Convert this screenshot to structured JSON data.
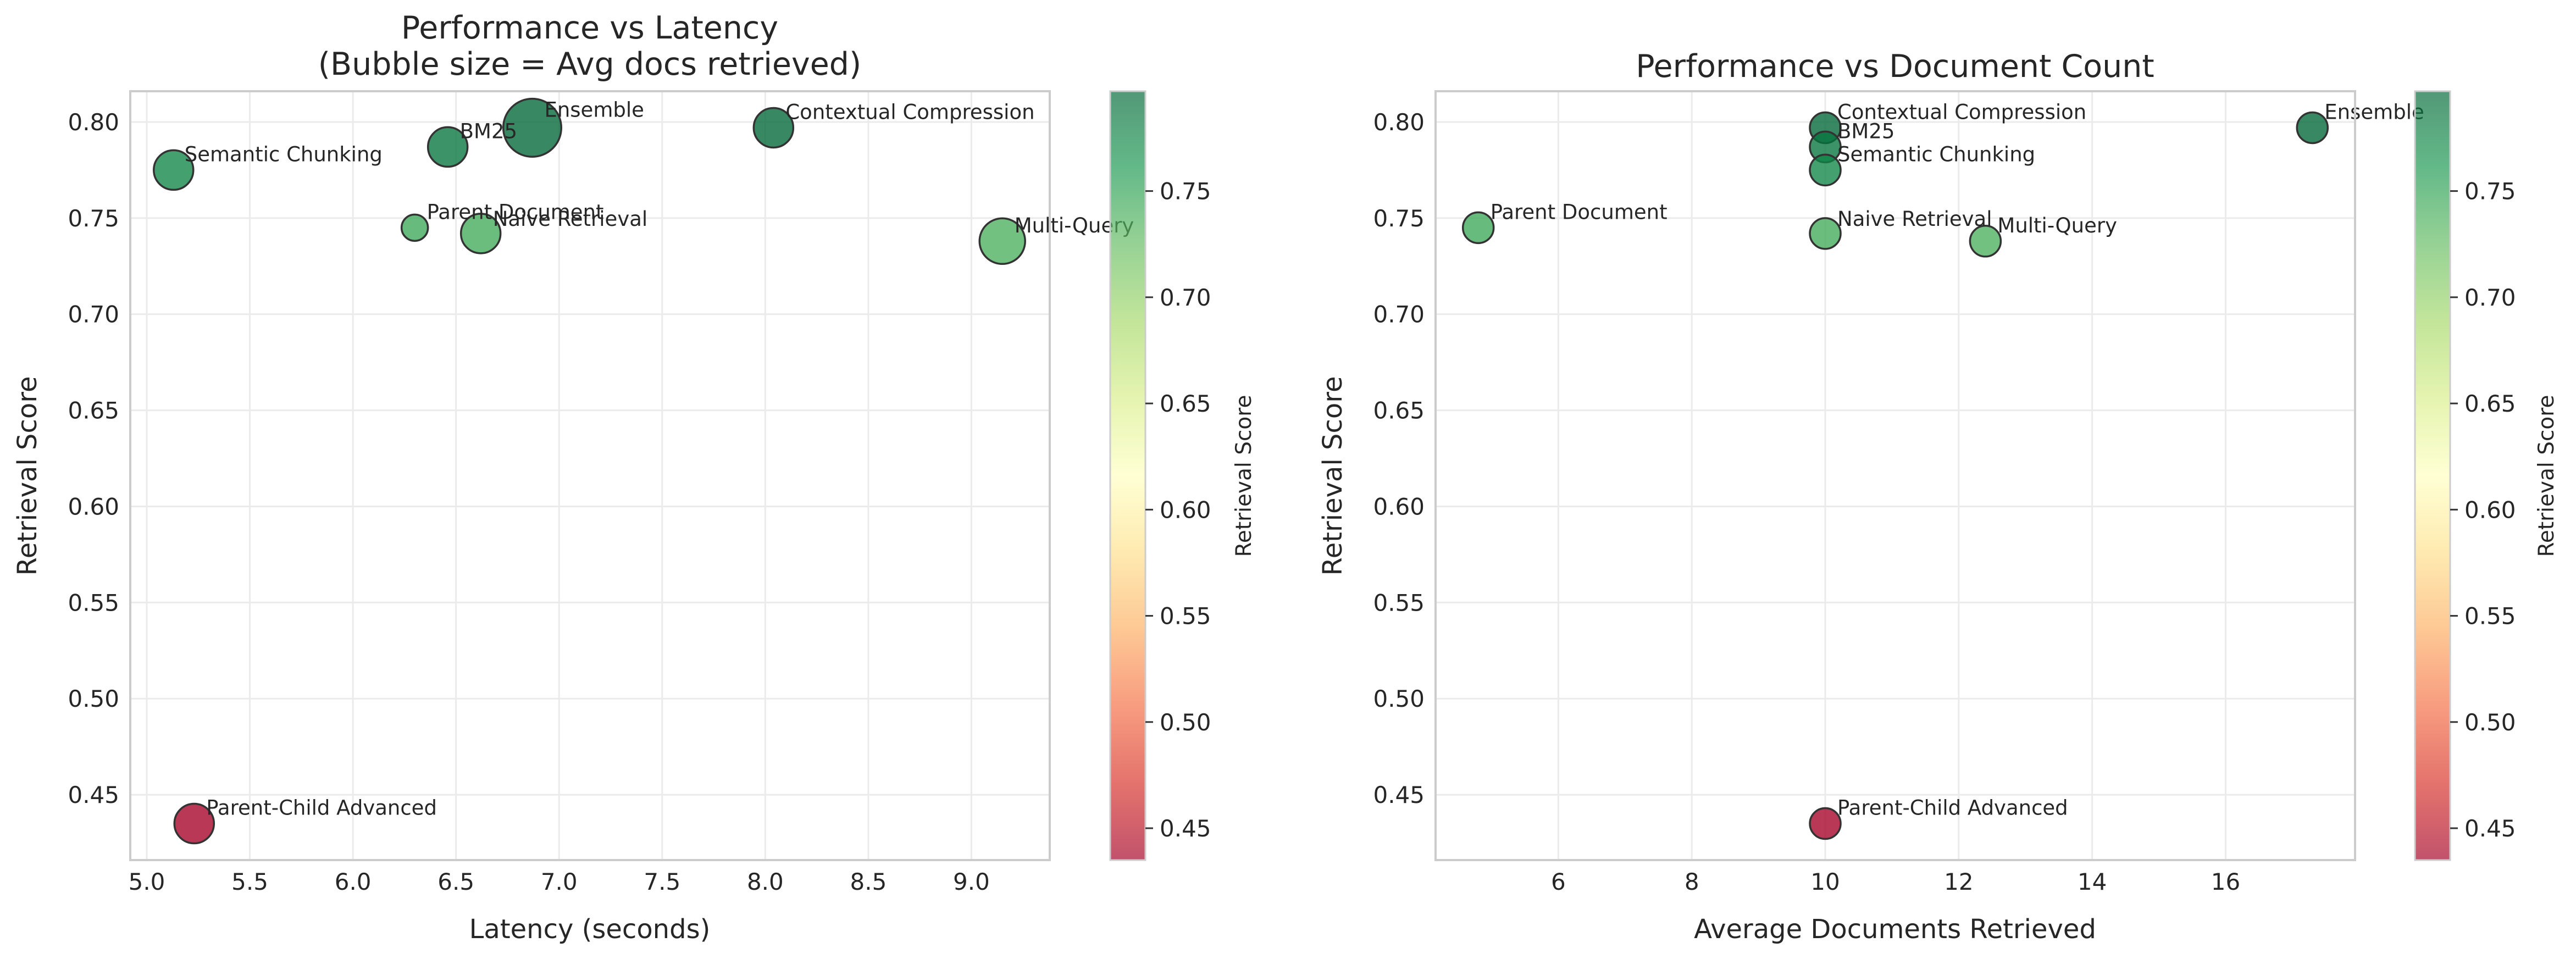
{
  "chart_data": [
    {
      "type": "scatter",
      "title": "Performance vs Latency\n(Bubble size = Avg docs retrieved)",
      "xlabel": "Latency (seconds)",
      "ylabel": "Retrieval Score",
      "xlim": [
        4.92,
        9.38
      ],
      "ylim": [
        0.416,
        0.816
      ],
      "xticks": [
        5.0,
        5.5,
        6.0,
        6.5,
        7.0,
        7.5,
        8.0,
        8.5,
        9.0
      ],
      "yticks": [
        0.45,
        0.5,
        0.55,
        0.6,
        0.65,
        0.7,
        0.75,
        0.8
      ],
      "grid": true,
      "size_encoding": "Avg docs retrieved",
      "points": [
        {
          "label": "Semantic Chunking",
          "x": 5.13,
          "y": 0.775,
          "size": 10,
          "score": 0.775
        },
        {
          "label": "BM25",
          "x": 6.46,
          "y": 0.787,
          "size": 10,
          "score": 0.787
        },
        {
          "label": "Ensemble",
          "x": 6.87,
          "y": 0.797,
          "size": 17.3,
          "score": 0.797
        },
        {
          "label": "Contextual Compression",
          "x": 8.04,
          "y": 0.797,
          "size": 10,
          "score": 0.797
        },
        {
          "label": "Parent Document",
          "x": 6.3,
          "y": 0.745,
          "size": 4.8,
          "score": 0.745
        },
        {
          "label": "Naive Retrieval",
          "x": 6.62,
          "y": 0.742,
          "size": 10,
          "score": 0.742
        },
        {
          "label": "Multi-Query",
          "x": 9.15,
          "y": 0.738,
          "size": 12.4,
          "score": 0.738
        },
        {
          "label": "Parent-Child Advanced",
          "x": 5.23,
          "y": 0.435,
          "size": 10,
          "score": 0.435
        }
      ],
      "colorbar": {
        "label": "Retrieval Score",
        "min": 0.435,
        "max": 0.797,
        "ticks": [
          0.45,
          0.5,
          0.55,
          0.6,
          0.65,
          0.7,
          0.75
        ],
        "colormap": "RdYlGn"
      }
    },
    {
      "type": "scatter",
      "title": "Performance vs Document Count",
      "xlabel": "Average Documents Retrieved",
      "ylabel": "Retrieval Score",
      "xlim": [
        4.16,
        17.94
      ],
      "ylim": [
        0.416,
        0.816
      ],
      "xticks": [
        6,
        8,
        10,
        12,
        14,
        16
      ],
      "yticks": [
        0.45,
        0.5,
        0.55,
        0.6,
        0.65,
        0.7,
        0.75,
        0.8
      ],
      "grid": true,
      "points": [
        {
          "label": "Contextual Compression",
          "x": 10,
          "y": 0.797,
          "score": 0.797
        },
        {
          "label": "BM25",
          "x": 10,
          "y": 0.787,
          "score": 0.787
        },
        {
          "label": "Semantic Chunking",
          "x": 10,
          "y": 0.775,
          "score": 0.775
        },
        {
          "label": "Ensemble",
          "x": 17.3,
          "y": 0.797,
          "score": 0.797
        },
        {
          "label": "Parent Document",
          "x": 4.8,
          "y": 0.745,
          "score": 0.745
        },
        {
          "label": "Naive Retrieval",
          "x": 10,
          "y": 0.742,
          "score": 0.742
        },
        {
          "label": "Multi-Query",
          "x": 12.4,
          "y": 0.738,
          "score": 0.738
        },
        {
          "label": "Parent-Child Advanced",
          "x": 10,
          "y": 0.435,
          "score": 0.435
        }
      ],
      "colorbar": {
        "label": "Retrieval Score",
        "min": 0.435,
        "max": 0.797,
        "ticks": [
          0.45,
          0.5,
          0.55,
          0.6,
          0.65,
          0.7,
          0.75,
          0.8
        ],
        "colormap": "RdYlGn"
      }
    }
  ]
}
